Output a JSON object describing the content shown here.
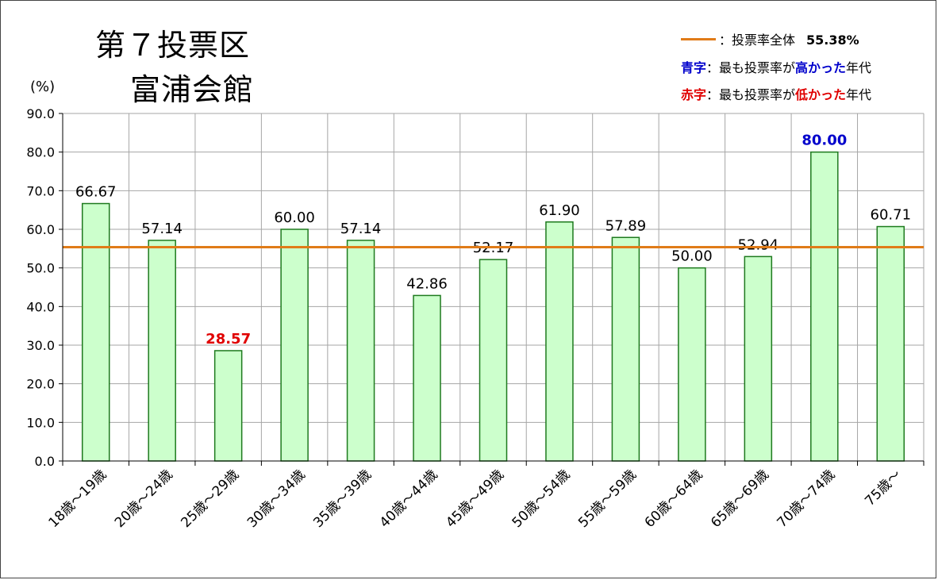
{
  "title_line1": "第７投票区",
  "title_line2": "富浦会館",
  "unit": "(%)",
  "legend": {
    "overall_label": "：投票率全体",
    "overall_value": "55.38%",
    "blue_prefix": "青字",
    "blue_mid": "：最も投票率が",
    "blue_emph": "高かった",
    "blue_suffix": "年代",
    "red_prefix": "赤字",
    "red_mid": "：最も投票率が",
    "red_emph": "低かった",
    "red_suffix": "年代"
  },
  "colors": {
    "bar_fill": "#ccffcc",
    "bar_stroke": "#1e7a1e",
    "reference_line": "#e07b18",
    "highest": "#0000cc",
    "lowest": "#e00000"
  },
  "chart_data": {
    "type": "bar",
    "categories": [
      "18歳～19歳",
      "20歳～24歳",
      "25歳～29歳",
      "30歳～34歳",
      "35歳～39歳",
      "40歳～44歳",
      "45歳～49歳",
      "50歳～54歳",
      "55歳～59歳",
      "60歳～64歳",
      "65歳～69歳",
      "70歳～74歳",
      "75歳～"
    ],
    "values": [
      66.67,
      57.14,
      28.57,
      60.0,
      57.14,
      42.86,
      52.17,
      61.9,
      57.89,
      50.0,
      52.94,
      80.0,
      60.71
    ],
    "labels": [
      "66.67",
      "57.14",
      "28.57",
      "60.00",
      "57.14",
      "42.86",
      "52.17",
      "61.90",
      "57.89",
      "50.00",
      "52.94",
      "80.00",
      "60.71"
    ],
    "highest_index": 11,
    "lowest_index": 2,
    "reference_value": 55.38,
    "ylim": [
      0,
      90
    ],
    "yticks": [
      "0.0",
      "10.0",
      "20.0",
      "30.0",
      "40.0",
      "50.0",
      "60.0",
      "70.0",
      "80.0",
      "90.0"
    ],
    "grid": true
  }
}
